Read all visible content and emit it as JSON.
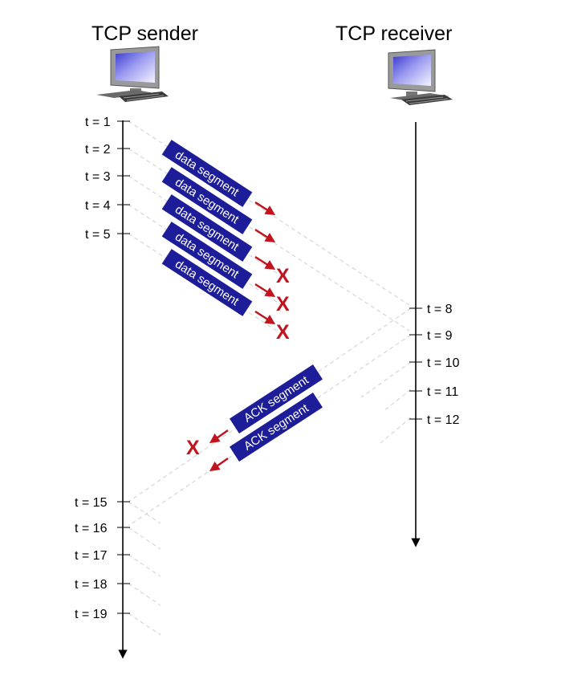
{
  "sender": {
    "title": "TCP sender"
  },
  "receiver": {
    "title": "TCP receiver"
  },
  "sender_ticks": [
    "t = 1",
    "t = 2",
    "t = 3",
    "t = 4",
    "t = 5",
    "t = 15",
    "t = 16",
    "t = 17",
    "t = 18",
    "t = 19"
  ],
  "receiver_ticks": [
    "t = 8",
    "t = 9",
    "t = 10",
    "t = 11",
    "t = 12"
  ],
  "data_segments": [
    "data segment",
    "data segment",
    "data segment",
    "data segment",
    "data segment"
  ],
  "ack_segments": [
    "ACK segment",
    "ACK segment"
  ],
  "loss_marker": "X",
  "colors": {
    "segment_box": "#1d1d9a",
    "arrow": "#c0141f",
    "loss": "#c0141f",
    "dashed_path": "#cfcfcf"
  },
  "icons": {
    "sender": "computer-icon",
    "receiver": "computer-icon"
  }
}
